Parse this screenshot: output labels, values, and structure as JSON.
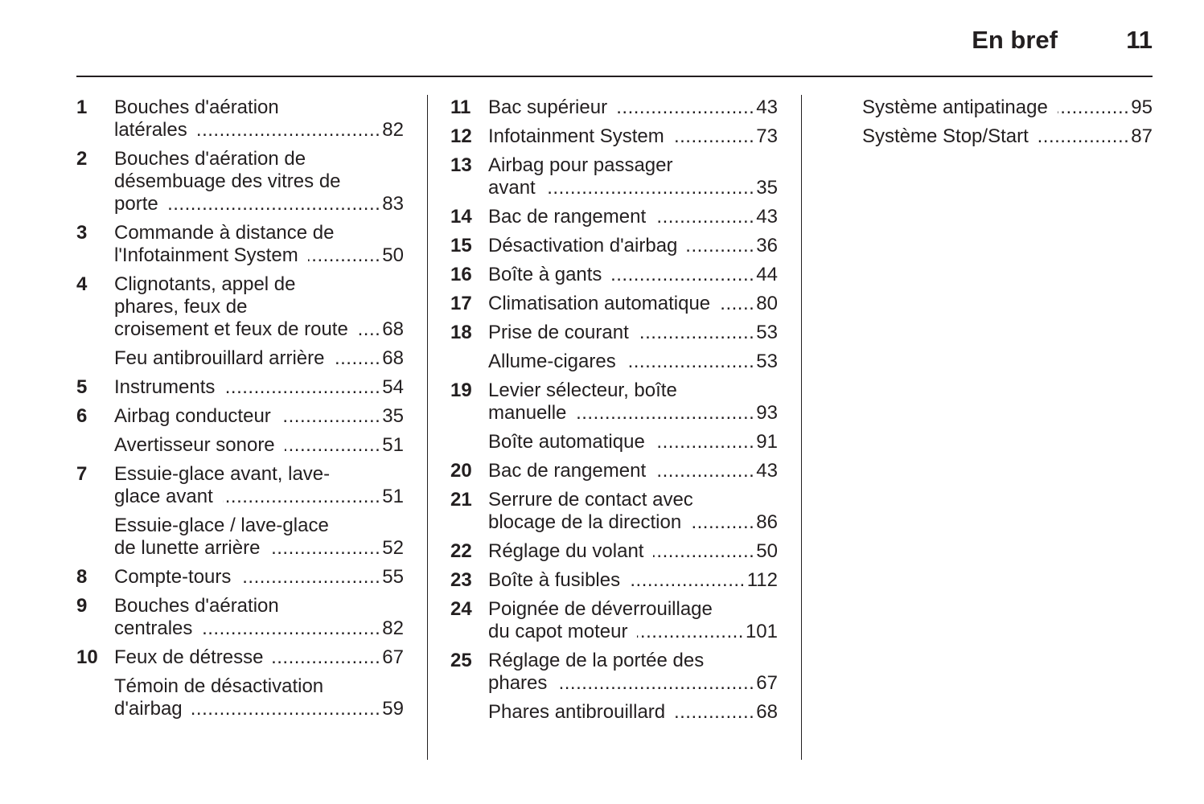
{
  "header": {
    "title": "En bref",
    "page_number": "11"
  },
  "columns": [
    [
      {
        "num": "1",
        "lines": [
          "Bouches d'aération",
          "latérales"
        ],
        "page": "82"
      },
      {
        "num": "2",
        "lines": [
          "Bouches d'aération de",
          "désembuage des vitres de",
          "porte"
        ],
        "page": "83"
      },
      {
        "num": "3",
        "lines": [
          "Commande à distance de",
          "l'Infotainment System"
        ],
        "page": "50"
      },
      {
        "num": "4",
        "lines": [
          "Clignotants, appel de",
          "phares, feux de",
          "croisement et feux de route"
        ],
        "page": "68"
      },
      {
        "num": "",
        "lines": [
          "Feu antibrouillard arrière"
        ],
        "page": "68",
        "sub": true
      },
      {
        "num": "5",
        "lines": [
          "Instruments"
        ],
        "page": "54"
      },
      {
        "num": "6",
        "lines": [
          "Airbag conducteur"
        ],
        "page": "35"
      },
      {
        "num": "",
        "lines": [
          "Avertisseur sonore"
        ],
        "page": "51",
        "sub": true
      },
      {
        "num": "7",
        "lines": [
          "Essuie-glace avant, lave-",
          "glace avant"
        ],
        "page": "51"
      },
      {
        "num": "",
        "lines": [
          "Essuie-glace / lave-glace",
          "de lunette arrière"
        ],
        "page": "52",
        "sub": true
      },
      {
        "num": "8",
        "lines": [
          "Compte-tours"
        ],
        "page": "55"
      },
      {
        "num": "9",
        "lines": [
          "Bouches d'aération",
          "centrales"
        ],
        "page": "82"
      },
      {
        "num": "10",
        "lines": [
          "Feux de détresse"
        ],
        "page": "67"
      },
      {
        "num": "",
        "lines": [
          "Témoin de désactivation",
          "d'airbag"
        ],
        "page": "59",
        "sub": true
      }
    ],
    [
      {
        "num": "11",
        "lines": [
          "Bac supérieur"
        ],
        "page": "43"
      },
      {
        "num": "12",
        "lines": [
          "Infotainment System"
        ],
        "page": "73"
      },
      {
        "num": "13",
        "lines": [
          "Airbag pour passager",
          "avant"
        ],
        "page": "35"
      },
      {
        "num": "14",
        "lines": [
          "Bac de rangement"
        ],
        "page": "43"
      },
      {
        "num": "15",
        "lines": [
          "Désactivation d'airbag"
        ],
        "page": "36"
      },
      {
        "num": "16",
        "lines": [
          "Boîte à gants"
        ],
        "page": "44"
      },
      {
        "num": "17",
        "lines": [
          "Climatisation automatique"
        ],
        "page": "80"
      },
      {
        "num": "18",
        "lines": [
          "Prise de courant"
        ],
        "page": "53"
      },
      {
        "num": "",
        "lines": [
          "Allume-cigares"
        ],
        "page": "53",
        "sub": true
      },
      {
        "num": "19",
        "lines": [
          "Levier sélecteur, boîte",
          "manuelle"
        ],
        "page": "93"
      },
      {
        "num": "",
        "lines": [
          "Boîte automatique"
        ],
        "page": "91",
        "sub": true
      },
      {
        "num": "20",
        "lines": [
          "Bac de rangement"
        ],
        "page": "43"
      },
      {
        "num": "21",
        "lines": [
          "Serrure de contact avec",
          "blocage de la direction"
        ],
        "page": "86"
      },
      {
        "num": "22",
        "lines": [
          "Réglage du volant"
        ],
        "page": "50"
      },
      {
        "num": "23",
        "lines": [
          "Boîte à fusibles"
        ],
        "page": "112"
      },
      {
        "num": "24",
        "lines": [
          "Poignée de déverrouillage",
          "du capot moteur"
        ],
        "page": "101"
      },
      {
        "num": "25",
        "lines": [
          "Réglage de la portée des",
          "phares"
        ],
        "page": "67"
      },
      {
        "num": "",
        "lines": [
          "Phares antibrouillard"
        ],
        "page": "68",
        "sub": true
      }
    ],
    [
      {
        "num": "",
        "lines": [
          "Système antipatinage"
        ],
        "page": "95"
      },
      {
        "num": "",
        "lines": [
          "Système Stop/Start"
        ],
        "page": "87",
        "sub": true
      }
    ]
  ]
}
